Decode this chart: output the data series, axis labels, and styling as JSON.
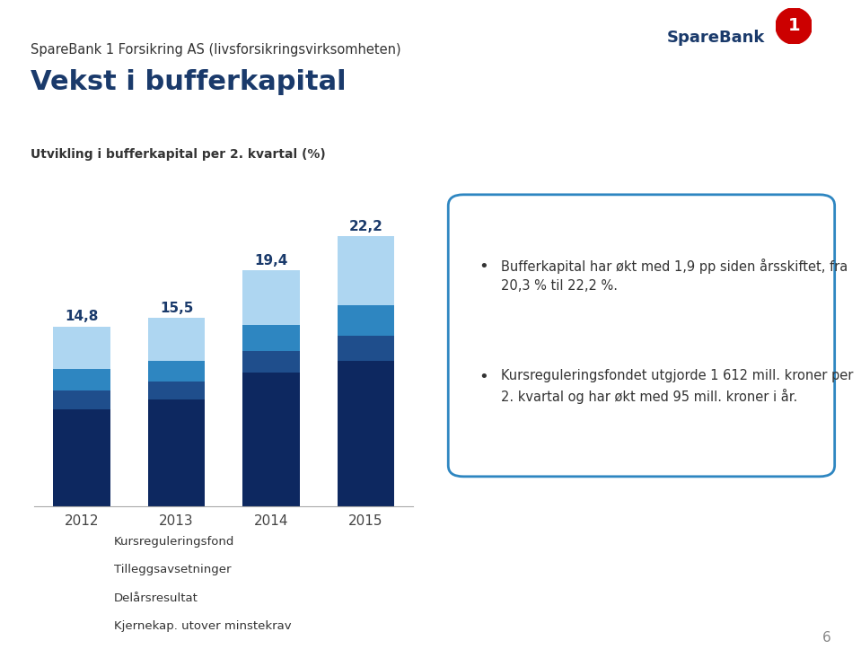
{
  "years": [
    "2012",
    "2013",
    "2014",
    "2015"
  ],
  "totals": [
    14.8,
    15.5,
    19.4,
    22.2
  ],
  "segments": {
    "Kjernekap. utover minstekrav": [
      8.0,
      8.8,
      11.0,
      12.0
    ],
    "Delårsresultat": [
      1.5,
      1.5,
      1.8,
      2.0
    ],
    "Tilleggsavsetninger": [
      1.8,
      1.7,
      2.1,
      2.5
    ],
    "Kursreguleringsfond": [
      3.5,
      3.5,
      4.5,
      5.7
    ]
  },
  "colors": {
    "Kjernekap. utover minstekrav": "#0d2860",
    "Delårsresultat": "#1f4e8c",
    "Tilleggsavsetninger": "#2e86c1",
    "Kursreguleringsfond": "#aed6f1"
  },
  "subtitle": "SpareBank 1 Forsikring AS (livsforsikringsvirksomheten)",
  "title": "Vekst i bufferkapital",
  "chart_label": "Utvikling i bufferkapital per 2. kvartal (%)",
  "bullet1": "Bufferkapital har økt med 1,9 pp siden årsskiftet, fra 20,3 % til 22,2 %.",
  "bullet2": "Kursreguleringsfondet utgjorde 1 612 mill. kroner per 2. kvartal og har økt med 95 mill. kroner i år.",
  "background_color": "#ffffff",
  "page_number": "6",
  "legend_order": [
    "Kursreguleringsfond",
    "Tilleggsavsetninger",
    "Delårsresultat",
    "Kjernekap. utover minstekrav"
  ]
}
